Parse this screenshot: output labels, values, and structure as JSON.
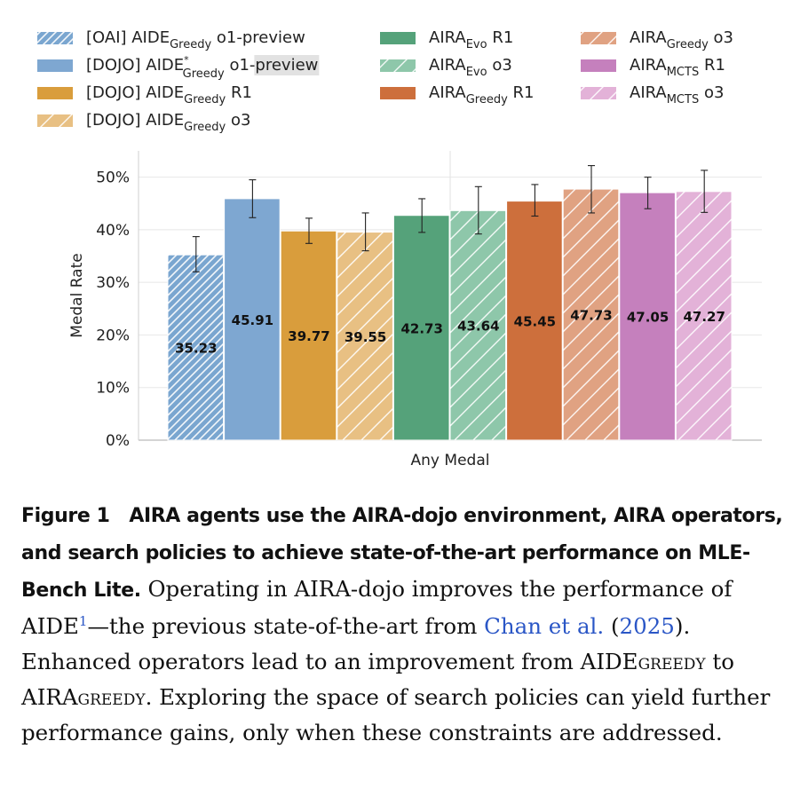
{
  "chart_data": {
    "type": "bar",
    "xlabel": "Any Medal",
    "ylabel": "Medal Rate",
    "ylim": [
      0,
      55
    ],
    "yticks": [
      "0%",
      "10%",
      "20%",
      "30%",
      "40%",
      "50%"
    ],
    "ytick_values": [
      0,
      10,
      20,
      30,
      40,
      50
    ],
    "grid": true,
    "legend_position": "top",
    "series": [
      {
        "name": "[OAI] AIDE_Greedy o1-preview",
        "prefix": "[OAI] AIDE",
        "sub": "Greedy",
        "sup": "",
        "suffix": " o1-preview",
        "value": 35.23,
        "label": "35.23",
        "err": [
          32.0,
          38.7
        ],
        "color": "#7aa6d0",
        "hatch": "fine"
      },
      {
        "name": "[DOJO] AIDE*_Greedy o1-preview",
        "prefix": "[DOJO] AIDE",
        "sub": "Greedy",
        "sup": "*",
        "suffix": " o1-",
        "suffix2": "preview",
        "value": 45.91,
        "label": "45.91",
        "err": [
          42.3,
          49.5
        ],
        "color": "#7ea7d1",
        "hatch": "none"
      },
      {
        "name": "[DOJO] AIDE_Greedy R1",
        "prefix": "[DOJO] AIDE",
        "sub": "Greedy",
        "sup": "",
        "suffix": " R1",
        "value": 39.77,
        "label": "39.77",
        "err": [
          37.4,
          42.2
        ],
        "color": "#d99d3c",
        "hatch": "none"
      },
      {
        "name": "[DOJO] AIDE_Greedy o3",
        "prefix": "[DOJO] AIDE",
        "sub": "Greedy",
        "sup": "",
        "suffix": " o3",
        "value": 39.55,
        "label": "39.55",
        "err": [
          36.0,
          43.2
        ],
        "color": "#e8c083",
        "hatch": "wide"
      },
      {
        "name": "AIRA_Evo R1",
        "prefix": "AIRA",
        "sub": "Evo",
        "sup": "",
        "suffix": " R1",
        "value": 42.73,
        "label": "42.73",
        "err": [
          39.5,
          45.9
        ],
        "color": "#55a27a",
        "hatch": "none"
      },
      {
        "name": "AIRA_Evo o3",
        "prefix": "AIRA",
        "sub": "Evo",
        "sup": "",
        "suffix": " o3",
        "value": 43.64,
        "label": "43.64",
        "err": [
          39.2,
          48.2
        ],
        "color": "#8ec7aa",
        "hatch": "wide"
      },
      {
        "name": "AIRA_Greedy R1",
        "prefix": "AIRA",
        "sub": "Greedy",
        "sup": "",
        "suffix": " R1",
        "value": 45.45,
        "label": "45.45",
        "err": [
          42.6,
          48.6
        ],
        "color": "#cd6f3c",
        "hatch": "none"
      },
      {
        "name": "AIRA_Greedy o3",
        "prefix": "AIRA",
        "sub": "Greedy",
        "sup": "",
        "suffix": " o3",
        "value": 47.73,
        "label": "47.73",
        "err": [
          43.2,
          52.2
        ],
        "color": "#e0a282",
        "hatch": "wide"
      },
      {
        "name": "AIRA_MCTS R1",
        "prefix": "AIRA",
        "sub": "MCTS",
        "sup": "",
        "suffix": " R1",
        "value": 47.05,
        "label": "47.05",
        "err": [
          44.0,
          50.0
        ],
        "color": "#c580bd",
        "hatch": "none"
      },
      {
        "name": "AIRA_MCTS o3",
        "prefix": "AIRA",
        "sub": "MCTS",
        "sup": "",
        "suffix": " o3",
        "value": 47.27,
        "label": "47.27",
        "err": [
          43.3,
          51.3
        ],
        "color": "#e3b2d8",
        "hatch": "wide"
      }
    ]
  },
  "caption": {
    "figure_label": "Figure 1",
    "title": "AIRA agents use the AIRA-dojo environment, AIRA operators, and search policies to achieve state-of-the-art performance on MLE-Bench Lite.",
    "text_1": "Operating in AIRA-dojo improves the performance of AIDE",
    "footnote_mark": "1",
    "text_2": "—the previous state-of-the-art from ",
    "cite_author": "Chan et al.",
    "text_3": " (",
    "cite_year": "2025",
    "text_4": "). Enhanced operators lead to an improvement from AIDE",
    "sc_1": "greedy",
    "text_5": " to AIRA",
    "sc_2": "greedy",
    "text_6": ". Exploring the space of search policies can yield further performance gains, only when these constraints are addressed."
  }
}
